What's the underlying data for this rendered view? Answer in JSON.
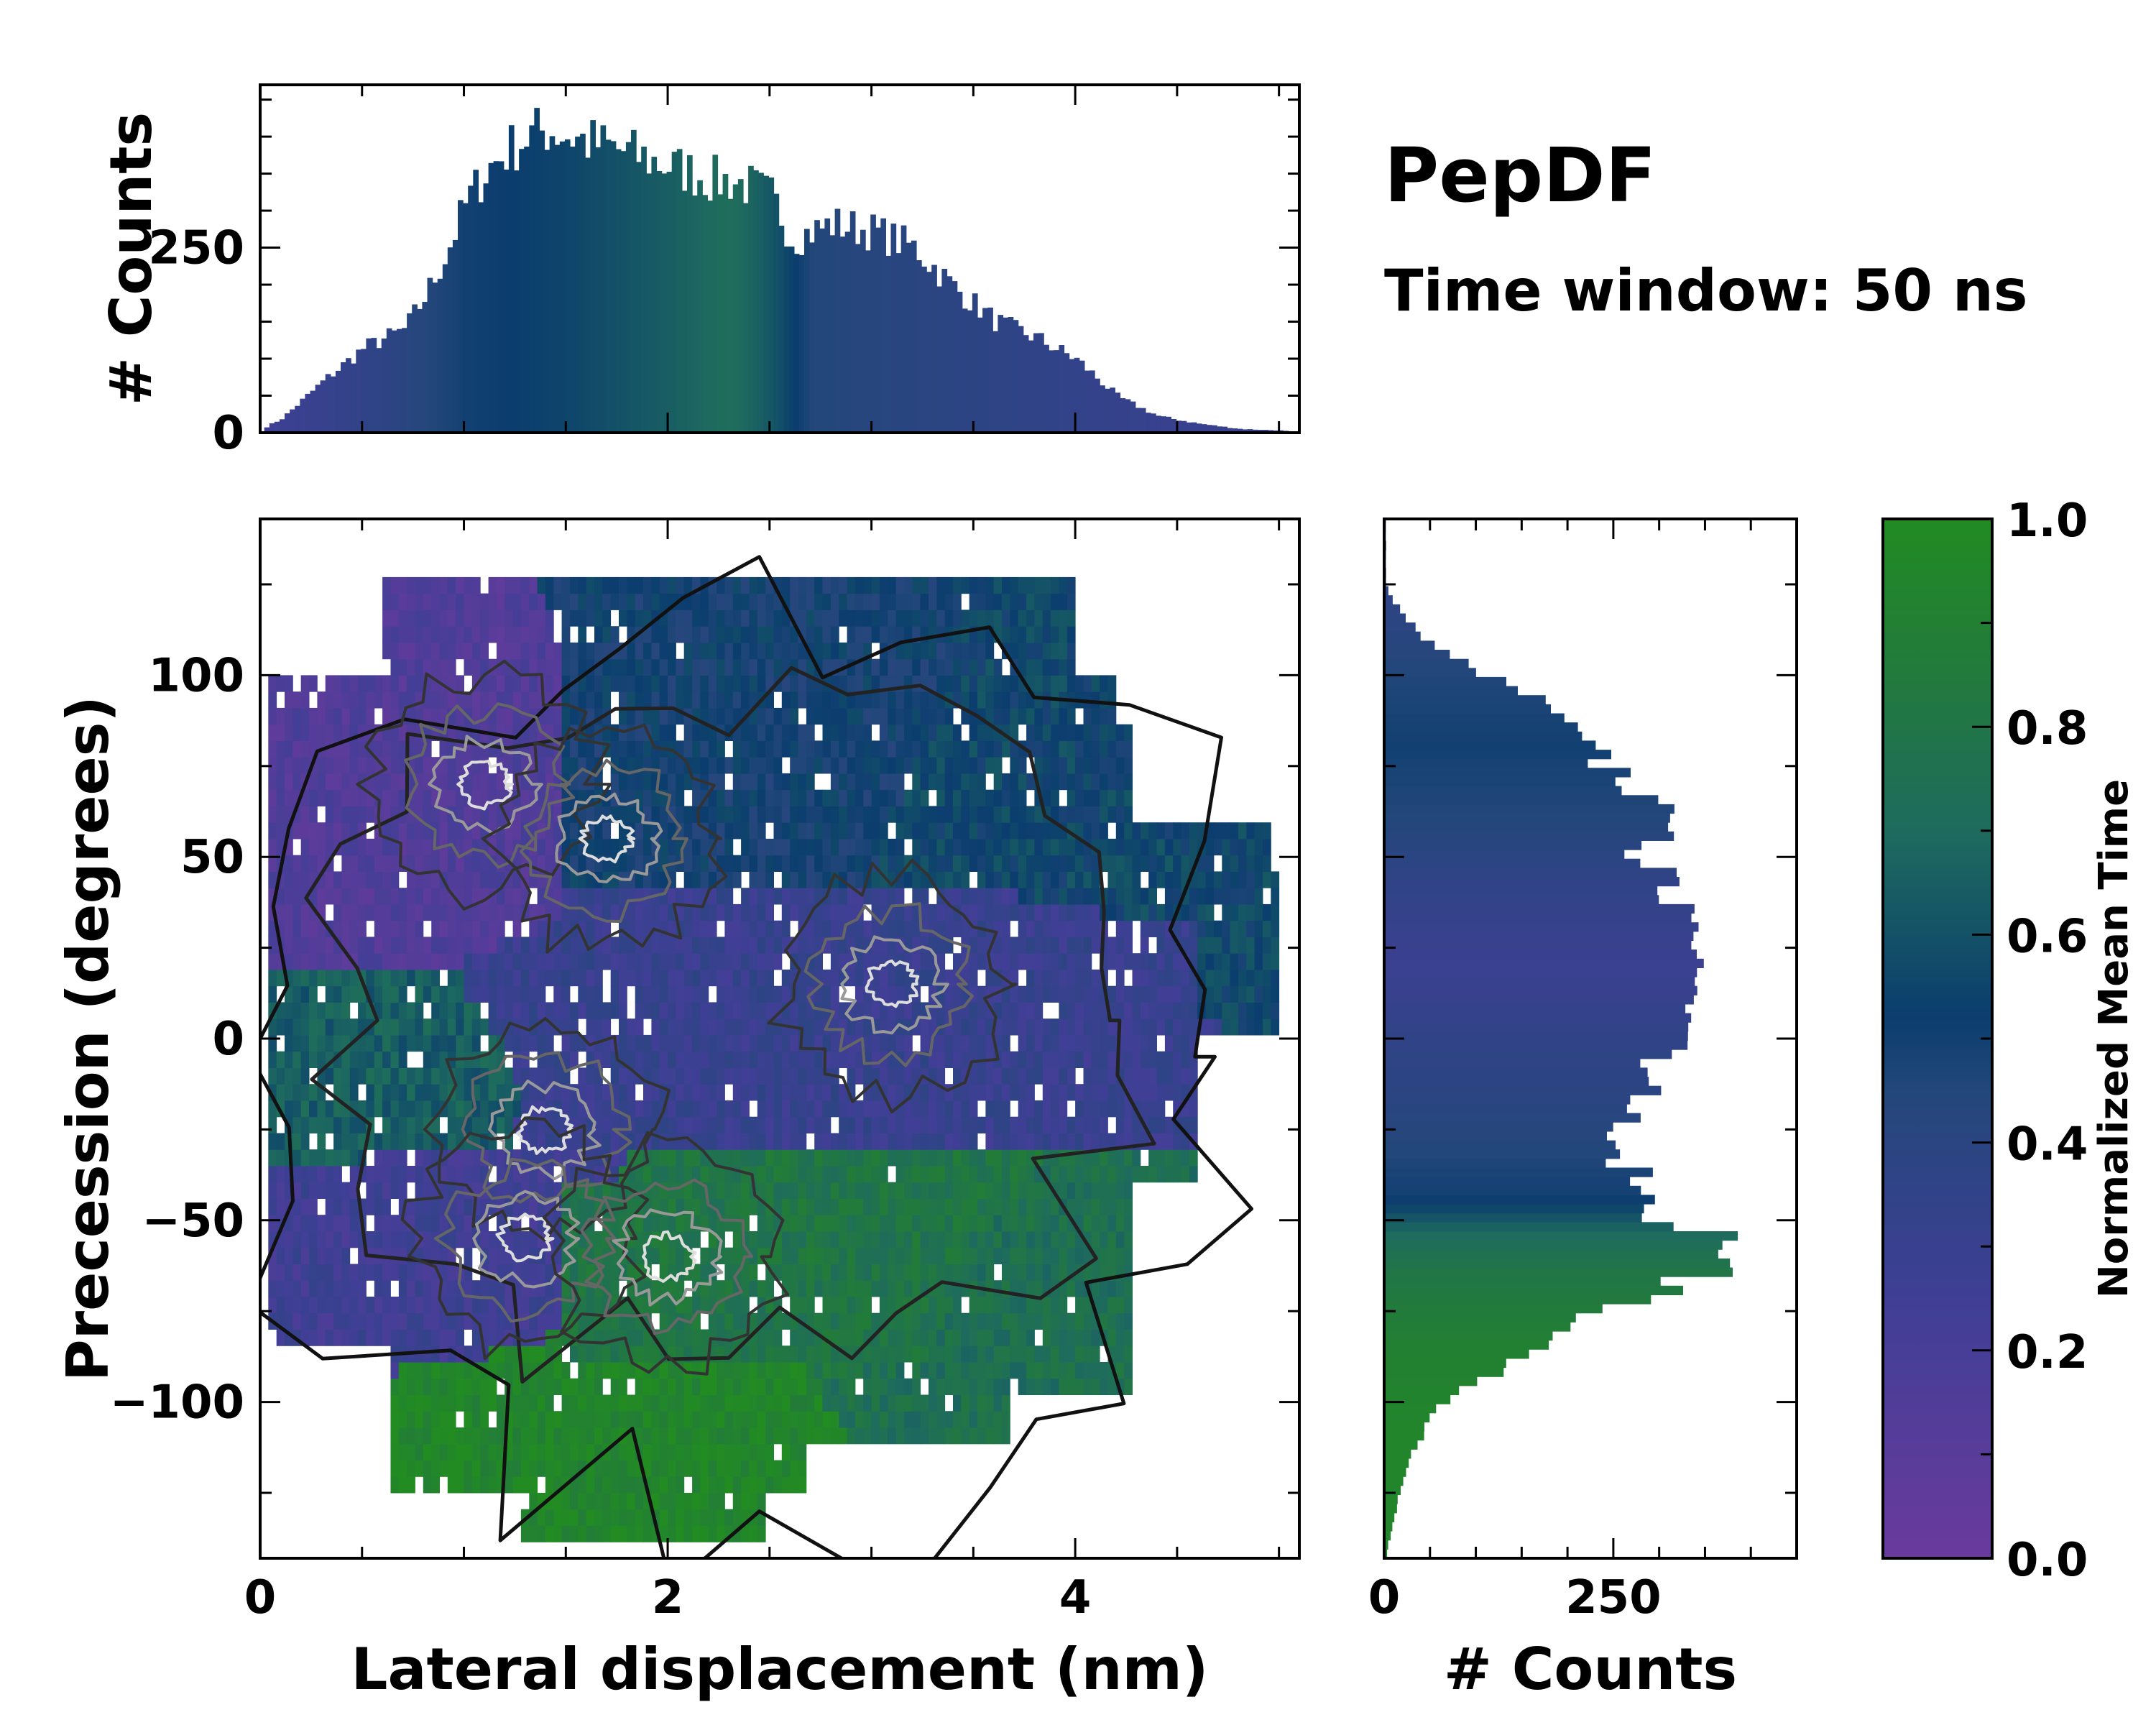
{
  "figure": {
    "title": "PepDF",
    "subtitle": "Time window: 50 ns"
  },
  "chart_data": [
    {
      "id": "top-histogram",
      "type": "bar",
      "title": "",
      "xlabel": "",
      "ylabel": "# Counts",
      "xlim": [
        0,
        5.1
      ],
      "ylim": [
        0,
        470
      ],
      "yticks": [
        0,
        250
      ],
      "ytick_labels": [
        "0",
        "250"
      ],
      "bin_width": 0.025,
      "bin_start": 0.02,
      "envelope": {
        "x": [
          0.0,
          0.1,
          0.3,
          0.5,
          0.7,
          0.8,
          0.9,
          1.0,
          1.1,
          1.2,
          1.3,
          1.4,
          1.5,
          1.6,
          1.7,
          1.8,
          1.9,
          2.0,
          2.1,
          2.2,
          2.3,
          2.4,
          2.5,
          2.6,
          2.8,
          3.0,
          3.2,
          3.4,
          3.6,
          3.8,
          4.0,
          4.2,
          4.4,
          4.6,
          4.8,
          5.0,
          5.1
        ],
        "counts": [
          5,
          20,
          70,
          115,
          140,
          185,
          240,
          310,
          355,
          380,
          400,
          410,
          402,
          392,
          385,
          378,
          368,
          360,
          352,
          342,
          340,
          332,
          318,
          262,
          282,
          272,
          250,
          195,
          150,
          128,
          98,
          48,
          22,
          12,
          5,
          3,
          0
        ]
      },
      "mean_time_profile": {
        "x": [
          0.0,
          0.5,
          1.0,
          1.5,
          2.0,
          2.3,
          2.5,
          2.7,
          3.0,
          3.5,
          4.0,
          4.5,
          5.1
        ],
        "value": [
          0.25,
          0.35,
          0.5,
          0.55,
          0.65,
          0.72,
          0.62,
          0.45,
          0.42,
          0.38,
          0.34,
          0.3,
          0.3
        ]
      }
    },
    {
      "id": "main-heatmap",
      "type": "heatmap",
      "title": "",
      "xlabel": "Lateral displacement (nm)",
      "ylabel": "Precession (degrees)",
      "xlim": [
        0,
        5.1
      ],
      "ylim": [
        -143,
        143
      ],
      "xticks": [
        0,
        2,
        4
      ],
      "xtick_labels": [
        "0",
        "2",
        "4"
      ],
      "yticks": [
        100,
        50,
        0,
        -50,
        -100
      ],
      "ytick_labels": [
        "100",
        "50",
        "0",
        "−50",
        "−100"
      ],
      "colormap": "purple-blue-teal-green",
      "value_label": "Normalized Mean Time",
      "regions": [
        {
          "name": "upper-left",
          "x": [
            0.0,
            1.5
          ],
          "y": [
            20,
            120
          ],
          "mean_time": 0.15
        },
        {
          "name": "upper-center",
          "x": [
            1.5,
            3.2
          ],
          "y": [
            40,
            110
          ],
          "mean_time": 0.5
        },
        {
          "name": "upper-right",
          "x": [
            3.0,
            5.0
          ],
          "y": [
            40,
            90
          ],
          "mean_time": 0.55
        },
        {
          "name": "middle",
          "x": [
            0.5,
            4.6
          ],
          "y": [
            -30,
            40
          ],
          "mean_time": 0.3
        },
        {
          "name": "middle-left",
          "x": [
            0.0,
            1.0
          ],
          "y": [
            -40,
            20
          ],
          "mean_time": 0.65
        },
        {
          "name": "lower-left",
          "x": [
            0.0,
            1.5
          ],
          "y": [
            -80,
            -30
          ],
          "mean_time": 0.25
        },
        {
          "name": "lower-center",
          "x": [
            1.5,
            3.5
          ],
          "y": [
            -90,
            -40
          ],
          "mean_time": 0.8
        },
        {
          "name": "lower-right",
          "x": [
            3.4,
            4.2
          ],
          "y": [
            -110,
            -60
          ],
          "mean_time": 0.75
        },
        {
          "name": "bottom",
          "x": [
            0.7,
            2.7
          ],
          "y": [
            -140,
            -90
          ],
          "mean_time": 0.95
        }
      ],
      "density_peaks": [
        {
          "x": 1.1,
          "y": 70
        },
        {
          "x": 1.7,
          "y": 55
        },
        {
          "x": 3.1,
          "y": 15
        },
        {
          "x": 1.4,
          "y": -25
        },
        {
          "x": 1.3,
          "y": -55
        },
        {
          "x": 2.0,
          "y": -60
        }
      ]
    },
    {
      "id": "right-histogram",
      "type": "bar",
      "orientation": "horizontal",
      "title": "",
      "xlabel": "# Counts",
      "ylabel": "",
      "xlim": [
        0,
        450
      ],
      "ylim": [
        -143,
        143
      ],
      "xticks": [
        0,
        250
      ],
      "xtick_labels": [
        "0",
        "250"
      ],
      "bin_width": 2.5,
      "envelope": {
        "y": [
          -143,
          -130,
          -120,
          -110,
          -100,
          -90,
          -80,
          -70,
          -60,
          -55,
          -50,
          -40,
          -30,
          -20,
          -10,
          0,
          10,
          20,
          30,
          40,
          50,
          60,
          70,
          80,
          90,
          100,
          110,
          120,
          125
        ],
        "counts": [
          2,
          12,
          25,
          38,
          65,
          130,
          200,
          290,
          395,
          390,
          310,
          270,
          260,
          290,
          270,
          310,
          345,
          335,
          320,
          300,
          285,
          300,
          270,
          220,
          190,
          110,
          45,
          10,
          2
        ]
      },
      "mean_time_profile": {
        "y": [
          -143,
          -110,
          -85,
          -65,
          -55,
          -45,
          -25,
          0,
          20,
          40,
          60,
          80,
          100,
          125
        ],
        "value": [
          0.95,
          0.95,
          0.9,
          0.8,
          0.7,
          0.5,
          0.42,
          0.35,
          0.28,
          0.35,
          0.45,
          0.5,
          0.45,
          0.35
        ]
      }
    },
    {
      "id": "colorbar",
      "type": "colorbar",
      "label": "Normalized Mean Time",
      "range": [
        0.0,
        1.0
      ],
      "ticks": [
        0.0,
        0.2,
        0.4,
        0.6,
        0.8,
        1.0
      ],
      "tick_labels": [
        "0.0",
        "0.2",
        "0.4",
        "0.6",
        "0.8",
        "1.0"
      ],
      "stops": [
        {
          "value": 0.0,
          "color": "#6a3a9e"
        },
        {
          "value": 0.25,
          "color": "#3f3f95"
        },
        {
          "value": 0.45,
          "color": "#23477a"
        },
        {
          "value": 0.52,
          "color": "#0b3d6e"
        },
        {
          "value": 0.7,
          "color": "#1e6b5e"
        },
        {
          "value": 0.85,
          "color": "#227a3c"
        },
        {
          "value": 1.0,
          "color": "#228b22"
        }
      ]
    }
  ]
}
